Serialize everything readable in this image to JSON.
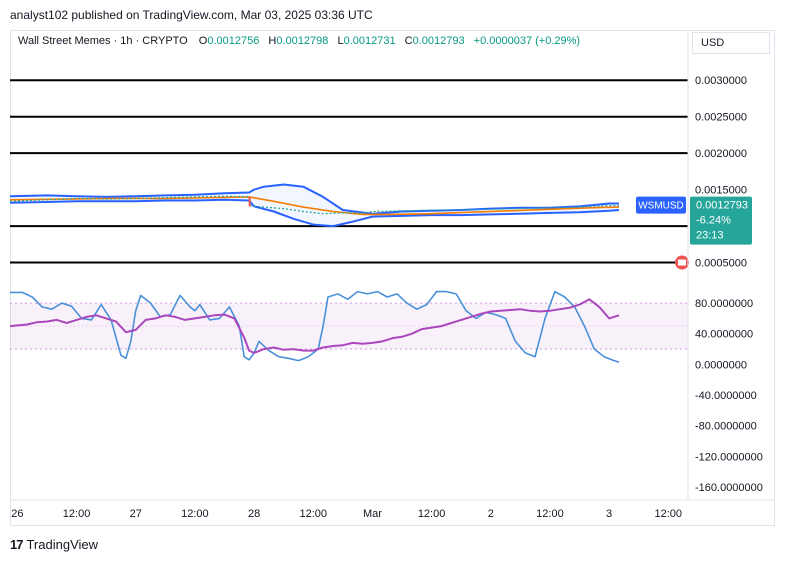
{
  "header": {
    "publisher": "analyst102 published on TradingView.com, Mar 03, 2025 03:36 UTC"
  },
  "legend": {
    "symbol": "Wall Street Memes · 1h · CRYPTO",
    "open_label": "O",
    "open": "0.0012756",
    "high_label": "H",
    "high": "0.0012798",
    "low_label": "L",
    "low": "0.0012731",
    "close_label": "C",
    "close": "0.0012793",
    "change": "+0.0000037 (+0.29%)"
  },
  "currency": "USD",
  "price_badge": {
    "ticker": "WSMUSD",
    "price": "0.0012793",
    "change_pct": "-6.24%",
    "countdown": "23:13"
  },
  "footer": {
    "brand": "TradingView"
  },
  "colors": {
    "band": "#2962ff",
    "ma_orange": "#f57c00",
    "price_green": "#26a69a",
    "stoch_k": "#4a90d9",
    "stoch_d": "#ab47bc",
    "badge_blue": "#2962ff",
    "badge_teal": "#26a69a"
  },
  "chart_data": [
    {
      "type": "line",
      "panel": "price",
      "y_ticks": [
        "0.0030000",
        "0.0025000",
        "0.0020000",
        "0.0015000",
        "0.0005000"
      ],
      "y_tick_values": [
        0.003,
        0.0025,
        0.002,
        0.0015,
        0.0005
      ],
      "ylim": [
        0.00037,
        0.00325
      ],
      "x_ticks": [
        "26",
        "12:00",
        "27",
        "12:00",
        "28",
        "12:00",
        "Mar",
        "12:00",
        "2",
        "12:00",
        "3",
        "12:00"
      ],
      "x_tick_positions": [
        0,
        12,
        24,
        36,
        48,
        60,
        72,
        84,
        96,
        108,
        120,
        132
      ],
      "xlim": [
        -1.5,
        136
      ],
      "horizontal_levels": [
        0.003,
        0.0025,
        0.002,
        0.001,
        0.0005
      ],
      "series": [
        {
          "role": "upper-band",
          "x": [
            -1.5,
            6,
            12,
            18,
            24,
            30,
            36,
            42,
            47,
            48,
            50,
            54,
            58,
            62,
            66,
            72,
            78,
            84,
            90,
            96,
            102,
            108,
            114,
            120,
            122
          ],
          "y": [
            0.00141,
            0.00142,
            0.00141,
            0.0014,
            0.00141,
            0.00142,
            0.00143,
            0.00145,
            0.00146,
            0.0015,
            0.00154,
            0.00157,
            0.00154,
            0.0014,
            0.00122,
            0.00117,
            0.0012,
            0.00121,
            0.00122,
            0.00124,
            0.00125,
            0.00125,
            0.00127,
            0.00131,
            0.00131
          ]
        },
        {
          "role": "lower-band",
          "x": [
            -1.5,
            6,
            12,
            18,
            24,
            30,
            36,
            42,
            47,
            48,
            52,
            56,
            60,
            64,
            68,
            72,
            78,
            84,
            90,
            96,
            102,
            108,
            114,
            120,
            122
          ],
          "y": [
            0.00132,
            0.00133,
            0.00134,
            0.00134,
            0.00134,
            0.00135,
            0.00135,
            0.00136,
            0.00135,
            0.00127,
            0.0012,
            0.0011,
            0.00102,
            0.001,
            0.00106,
            0.00113,
            0.00114,
            0.00115,
            0.00115,
            0.00116,
            0.00117,
            0.00118,
            0.00119,
            0.00121,
            0.00122
          ]
        },
        {
          "role": "moving-average",
          "x": [
            -1.5,
            10,
            20,
            30,
            40,
            47,
            52,
            58,
            64,
            70,
            76,
            84,
            92,
            100,
            108,
            116,
            122
          ],
          "y": [
            0.00136,
            0.00137,
            0.00138,
            0.00138,
            0.00139,
            0.0014,
            0.00134,
            0.00126,
            0.0012,
            0.00116,
            0.00116,
            0.00117,
            0.00119,
            0.00121,
            0.00123,
            0.00125,
            0.00126
          ]
        },
        {
          "role": "price",
          "x": [
            -1.5,
            6,
            12,
            18,
            24,
            30,
            36,
            42,
            47,
            47.2,
            50,
            54,
            58,
            62,
            66,
            70,
            72,
            78,
            84,
            90,
            96,
            102,
            108,
            114,
            120,
            122
          ],
          "y": [
            0.00134,
            0.00136,
            0.00138,
            0.00137,
            0.00138,
            0.00139,
            0.0014,
            0.00141,
            0.0014,
            0.00128,
            0.00126,
            0.00124,
            0.0012,
            0.00117,
            0.00118,
            0.00118,
            0.0012,
            0.00121,
            0.00122,
            0.00122,
            0.00123,
            0.00124,
            0.00125,
            0.00126,
            0.00128,
            0.00128
          ]
        }
      ]
    },
    {
      "type": "line",
      "panel": "stochastic",
      "y_ticks": [
        "80.0000000",
        "40.0000000",
        "0.0000000",
        "-40.0000000",
        "-80.0000000",
        "-120.0000000",
        "-160.0000000"
      ],
      "y_tick_values": [
        80,
        40,
        0,
        -40,
        -80,
        -120,
        -160
      ],
      "ylim": [
        -177,
        101
      ],
      "xlim": [
        -1.5,
        136
      ],
      "bands": {
        "upper": 80,
        "lower": 20,
        "middle": 50
      },
      "series": [
        {
          "role": "stoch-k",
          "x": [
            -1.5,
            1,
            3,
            5,
            7,
            9,
            11,
            13,
            15,
            17,
            19,
            21,
            22,
            23,
            24,
            25,
            27,
            29,
            31,
            33,
            35,
            36,
            37,
            39,
            41,
            43,
            45,
            46,
            47,
            48,
            49,
            51,
            53,
            55,
            57,
            59,
            61,
            62,
            63,
            65,
            67,
            69,
            71,
            73,
            75,
            77,
            79,
            81,
            83,
            85,
            87,
            89,
            91,
            93,
            95,
            97,
            99,
            101,
            103,
            105,
            107,
            109,
            111,
            113,
            115,
            117,
            119,
            121,
            122
          ],
          "y": [
            94,
            94,
            88,
            75,
            72,
            80,
            76,
            60,
            58,
            78,
            58,
            12,
            8,
            30,
            70,
            90,
            80,
            62,
            65,
            90,
            75,
            70,
            78,
            58,
            60,
            75,
            50,
            10,
            6,
            15,
            30,
            18,
            10,
            8,
            5,
            10,
            20,
            50,
            88,
            92,
            85,
            95,
            92,
            95,
            88,
            92,
            80,
            72,
            78,
            95,
            95,
            92,
            70,
            60,
            68,
            65,
            60,
            30,
            15,
            10,
            60,
            95,
            88,
            75,
            50,
            20,
            10,
            5,
            3
          ]
        },
        {
          "role": "stoch-d",
          "x": [
            -1.5,
            2,
            4,
            6,
            8,
            10,
            12,
            14,
            16,
            18,
            20,
            22,
            24,
            26,
            28,
            30,
            32,
            34,
            36,
            38,
            40,
            42,
            44,
            46,
            47,
            48,
            50,
            52,
            54,
            56,
            58,
            60,
            62,
            64,
            66,
            68,
            70,
            72,
            74,
            76,
            78,
            80,
            82,
            84,
            86,
            88,
            90,
            92,
            94,
            96,
            98,
            100,
            102,
            104,
            106,
            108,
            110,
            112,
            114,
            116,
            118,
            120,
            122
          ],
          "y": [
            50,
            52,
            55,
            56,
            58,
            54,
            58,
            62,
            64,
            60,
            56,
            42,
            45,
            58,
            60,
            64,
            62,
            58,
            60,
            62,
            64,
            65,
            60,
            35,
            18,
            15,
            20,
            22,
            19,
            20,
            18,
            18,
            22,
            24,
            25,
            28,
            27,
            28,
            30,
            34,
            36,
            40,
            46,
            48,
            50,
            54,
            58,
            62,
            66,
            69,
            70,
            71,
            72,
            70,
            69,
            70,
            72,
            74,
            78,
            85,
            75,
            60,
            64
          ]
        }
      ]
    }
  ]
}
